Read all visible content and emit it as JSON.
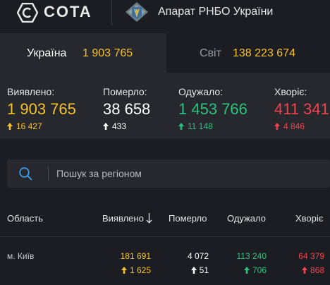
{
  "header": {
    "logo_text": "COTA",
    "org_title": "Апарат РНБО України"
  },
  "tabs": [
    {
      "label": "Україна",
      "value": "1 903 765",
      "active": true
    },
    {
      "label": "Світ",
      "value": "138 223 674",
      "active": false
    }
  ],
  "stats": [
    {
      "label": "Виявлено:",
      "value": "1 903 765",
      "delta": "16 427",
      "color": "#f5c228"
    },
    {
      "label": "Померло:",
      "value": "38 658",
      "delta": "433",
      "color": "#ffffff"
    },
    {
      "label": "Одужало:",
      "value": "1 453 766",
      "delta": "11 148",
      "color": "#27c47e"
    },
    {
      "label": "Хворіє:",
      "value": "411 341",
      "delta": "4 846",
      "color": "#f0434d"
    }
  ],
  "search": {
    "placeholder": "Пошук за регіоном"
  },
  "table": {
    "columns": {
      "region": "Область",
      "detected": "Виявлено",
      "died": "Померло",
      "recovered": "Одужало",
      "sick": "Хворіє"
    },
    "rows": [
      {
        "region": "м. Київ",
        "detected": "181 691",
        "detected_delta": "1 625",
        "died": "4 072",
        "died_delta": "51",
        "recovered": "113 240",
        "recovered_delta": "706",
        "sick": "64 379",
        "sick_delta": "868"
      }
    ]
  }
}
